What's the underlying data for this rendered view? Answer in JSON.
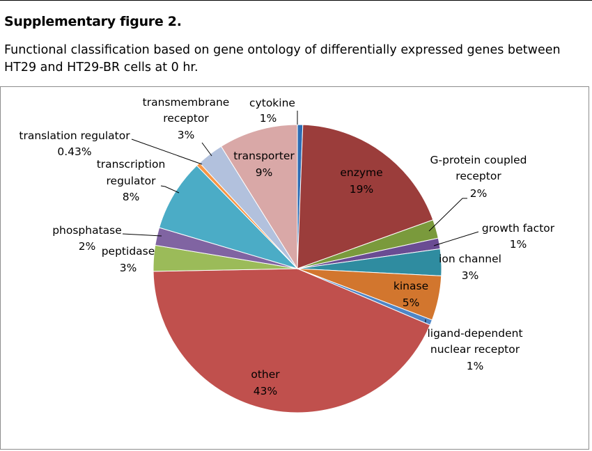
{
  "figure": {
    "title": "Supplementary figure 2.",
    "caption_line1": "Functional classification based on gene ontology of differentially expressed genes between",
    "caption_line2": "HT29 and HT29-BR cells at 0 hr."
  },
  "chart_data": {
    "type": "pie",
    "slices": [
      {
        "name": "cytokine",
        "pct_label": "1%",
        "value": 0.6,
        "color": "#2e6db4"
      },
      {
        "name": "enzyme",
        "pct_label": "19%",
        "value": 18.9,
        "color": "#9b3d3b"
      },
      {
        "name": "G-protein coupled receptor",
        "pct_label": "2%",
        "value": 2.1,
        "color": "#7a9a3c"
      },
      {
        "name": "growth factor",
        "pct_label": "1%",
        "value": 1.2,
        "color": "#6a4c93"
      },
      {
        "name": "ion channel",
        "pct_label": "3%",
        "value": 3.0,
        "color": "#2f8ca0"
      },
      {
        "name": "kinase",
        "pct_label": "5%",
        "value": 5.0,
        "color": "#d2762e"
      },
      {
        "name": "ligand-dependent nuclear receptor",
        "pct_label": "1%",
        "value": 0.6,
        "color": "#4f86c6"
      },
      {
        "name": "other",
        "pct_label": "43%",
        "value": 43.3,
        "color": "#c0504d"
      },
      {
        "name": "peptidase",
        "pct_label": "3%",
        "value": 2.9,
        "color": "#9bbb59"
      },
      {
        "name": "phosphatase",
        "pct_label": "2%",
        "value": 2.0,
        "color": "#8064a2"
      },
      {
        "name": "transcription regulator",
        "pct_label": "8%",
        "value": 8.1,
        "color": "#4bacc6"
      },
      {
        "name": "translation regulator",
        "pct_label": "0.43%",
        "value": 0.43,
        "color": "#f79646"
      },
      {
        "name": "transmembrane receptor",
        "pct_label": "3%",
        "value": 3.0,
        "color": "#b2c1dd"
      },
      {
        "name": "transporter",
        "pct_label": "9%",
        "value": 8.87,
        "color": "#d9a8a7"
      }
    ]
  }
}
